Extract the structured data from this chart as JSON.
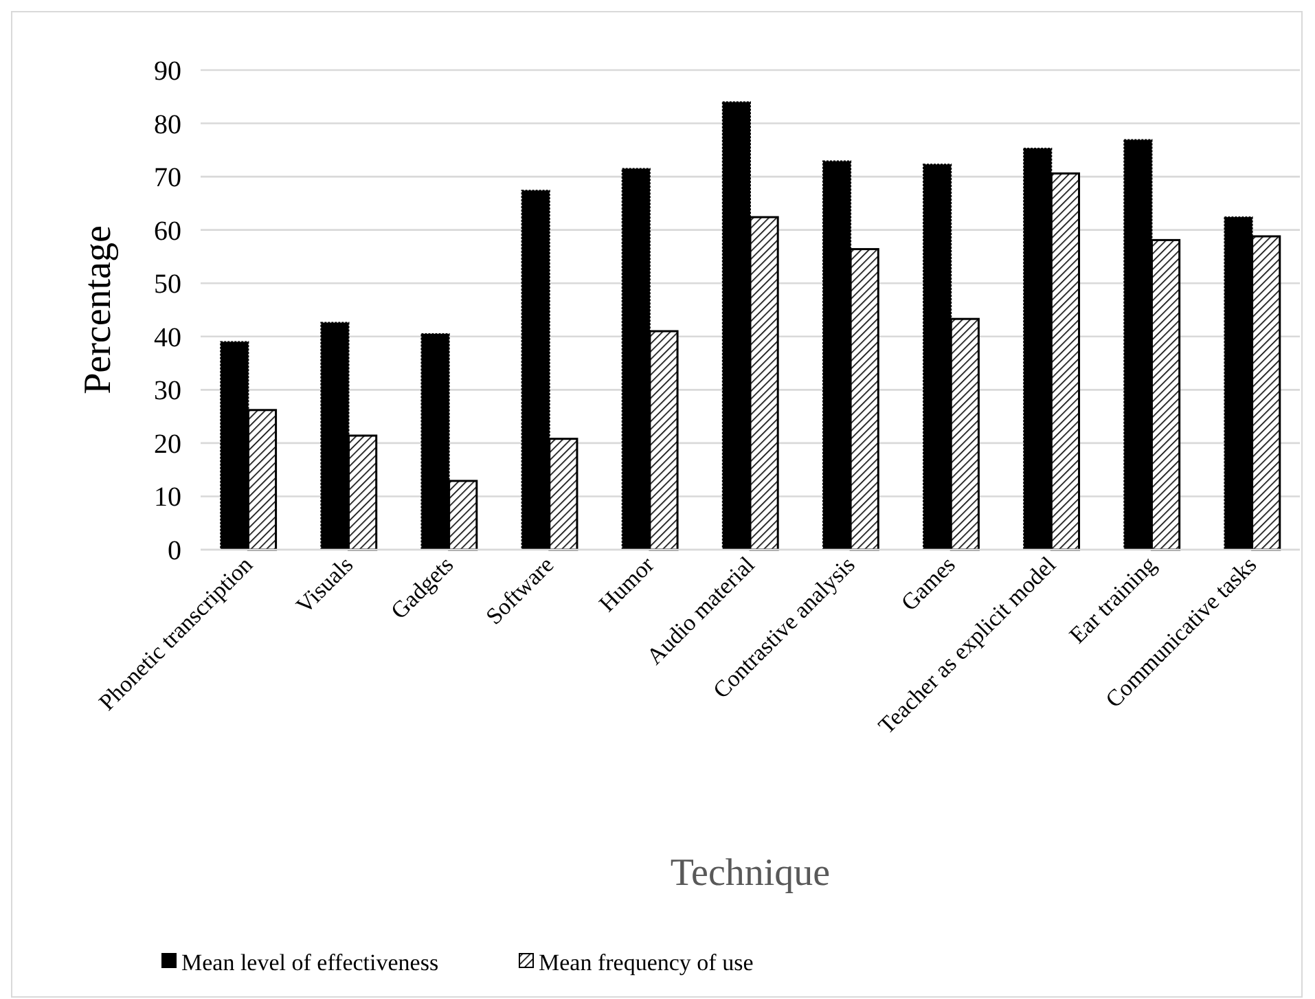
{
  "chart_data": {
    "type": "bar",
    "xlabel": "Technique",
    "ylabel": "Percentage",
    "categories": [
      "Phonetic transcription",
      "Visuals",
      "Gadgets",
      "Software",
      "Humor",
      "Audio material",
      "Contrastive analysis",
      "Games",
      "Teacher as explicit model",
      "Ear training",
      "Communicative tasks"
    ],
    "series": [
      {
        "name": "Mean level of effectiveness",
        "color": "#000000",
        "values": [
          39.0,
          42.6,
          40.5,
          67.4,
          71.5,
          84.0,
          72.9,
          72.3,
          75.3,
          76.9,
          62.4
        ]
      },
      {
        "name": "Mean frequency of use",
        "color": "#000000",
        "values": [
          26.2,
          21.4,
          12.9,
          20.8,
          41.0,
          62.4,
          56.4,
          43.3,
          70.6,
          58.1,
          58.8
        ]
      }
    ],
    "ylim": [
      0,
      90
    ],
    "yticks": [
      0,
      10,
      20,
      30,
      40,
      50,
      60,
      70,
      80,
      90
    ],
    "grid": "y",
    "legend": "bottom"
  }
}
